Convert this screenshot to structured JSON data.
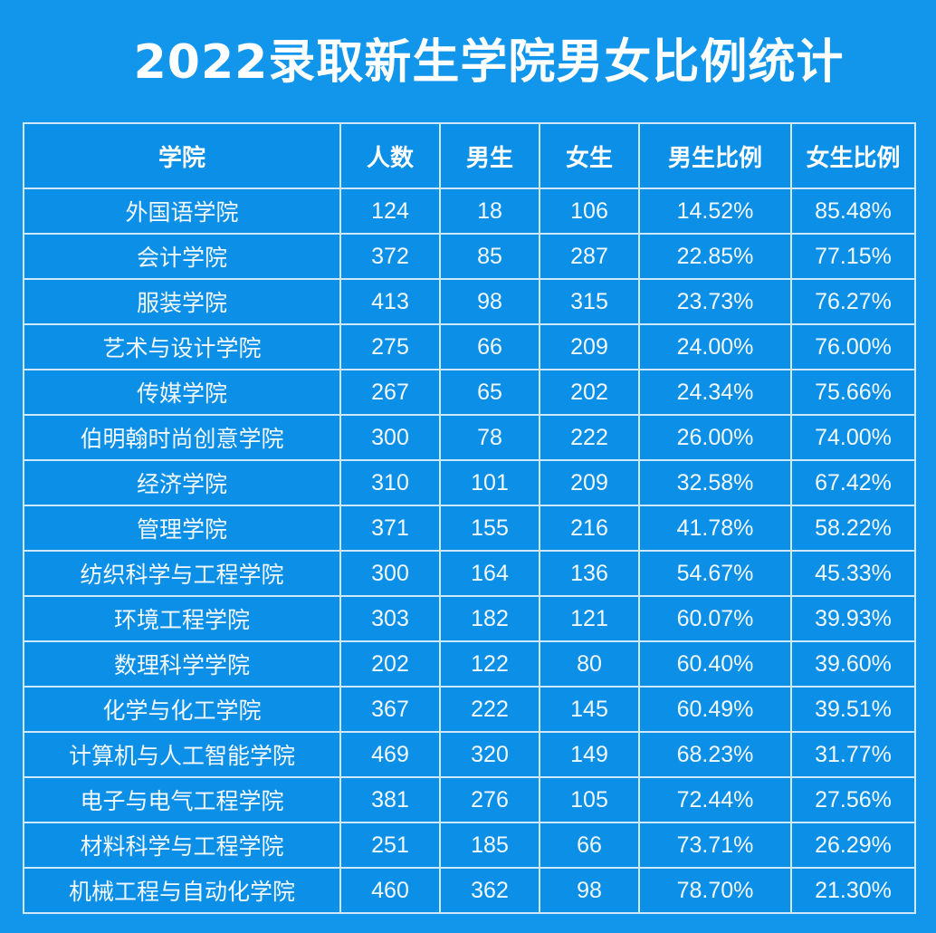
{
  "title": "2022录取新生学院男女比例统计",
  "table": {
    "headers": [
      "学院",
      "人数",
      "男生",
      "女生",
      "男生比例",
      "女生比例"
    ],
    "rows": [
      [
        "外国语学院",
        "124",
        "18",
        "106",
        "14.52%",
        "85.48%"
      ],
      [
        "会计学院",
        "372",
        "85",
        "287",
        "22.85%",
        "77.15%"
      ],
      [
        "服装学院",
        "413",
        "98",
        "315",
        "23.73%",
        "76.27%"
      ],
      [
        "艺术与设计学院",
        "275",
        "66",
        "209",
        "24.00%",
        "76.00%"
      ],
      [
        "传媒学院",
        "267",
        "65",
        "202",
        "24.34%",
        "75.66%"
      ],
      [
        "伯明翰时尚创意学院",
        "300",
        "78",
        "222",
        "26.00%",
        "74.00%"
      ],
      [
        "经济学院",
        "310",
        "101",
        "209",
        "32.58%",
        "67.42%"
      ],
      [
        "管理学院",
        "371",
        "155",
        "216",
        "41.78%",
        "58.22%"
      ],
      [
        "纺织科学与工程学院",
        "300",
        "164",
        "136",
        "54.67%",
        "45.33%"
      ],
      [
        "环境工程学院",
        "303",
        "182",
        "121",
        "60.07%",
        "39.93%"
      ],
      [
        "数理科学学院",
        "202",
        "122",
        "80",
        "60.40%",
        "39.60%"
      ],
      [
        "化学与化工学院",
        "367",
        "222",
        "145",
        "60.49%",
        "39.51%"
      ],
      [
        "计算机与人工智能学院",
        "469",
        "320",
        "149",
        "68.23%",
        "31.77%"
      ],
      [
        "电子与电气工程学院",
        "381",
        "276",
        "105",
        "72.44%",
        "27.56%"
      ],
      [
        "材料科学与工程学院",
        "251",
        "185",
        "66",
        "73.71%",
        "26.29%"
      ],
      [
        "机械工程与自动化学院",
        "460",
        "362",
        "98",
        "78.70%",
        "21.30%"
      ]
    ]
  },
  "colors": {
    "background": "#1196ec",
    "table_fill": "#0c8fe6",
    "grid_line": "#cfe9fb",
    "text": "#ffffff"
  }
}
